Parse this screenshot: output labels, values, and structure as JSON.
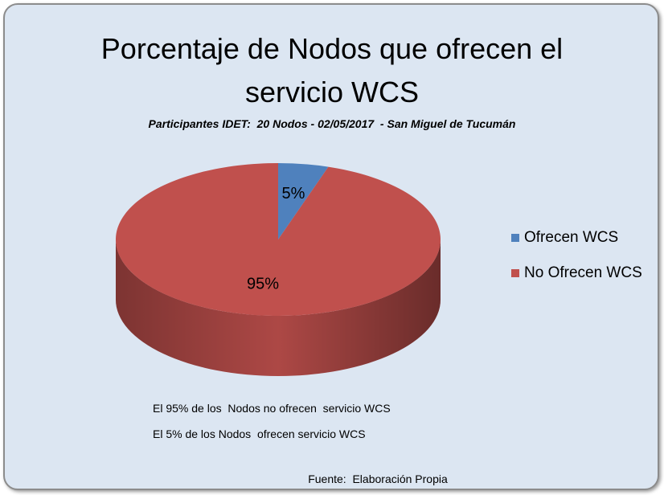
{
  "chart_data": {
    "type": "pie",
    "title": "Porcentaje de Nodos que ofrecen el servicio WCS",
    "subtitle": "Participantes IDET:  20 Nodos - 02/05/2017  - San Miguel de Tucumán",
    "categories": [
      "Ofrecen WCS",
      "No Ofrecen WCS"
    ],
    "values": [
      5,
      95
    ],
    "value_labels": [
      "5%",
      "95%"
    ],
    "colors": [
      "#4f81bd",
      "#c0504d"
    ],
    "legend": "right",
    "annotations": [
      "El 95% de los  Nodos no ofrecen  servicio WCS",
      "El 5% de los Nodos  ofrecen servicio WCS"
    ],
    "source": "Fuente:  Elaboración Propia"
  }
}
